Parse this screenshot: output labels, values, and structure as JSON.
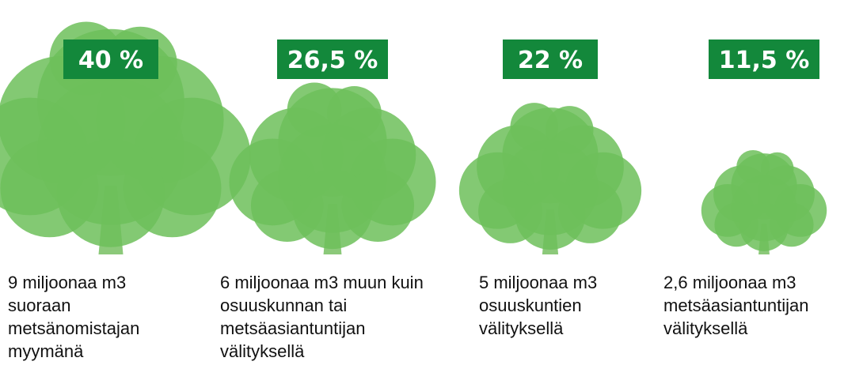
{
  "chart_data": {
    "type": "pictograph",
    "categories": [
      "9 miljoonaa m3 suoraan metsänomistajan myymänä",
      "6 miljoonaa m3 muun kuin osuuskunnan tai metsäasiantuntijan välityksellä",
      "5 miljoonaa m3 osuuskuntien välityksellä",
      "2,6 miljoonaa m3 metsäasiantuntijan välityksellä"
    ],
    "values": [
      40,
      26.5,
      22,
      11.5
    ],
    "value_labels": [
      "40 %",
      "26,5 %",
      "22 %",
      "11,5 %"
    ],
    "color": "#6dbf5a",
    "label_color": "#13883b"
  }
}
